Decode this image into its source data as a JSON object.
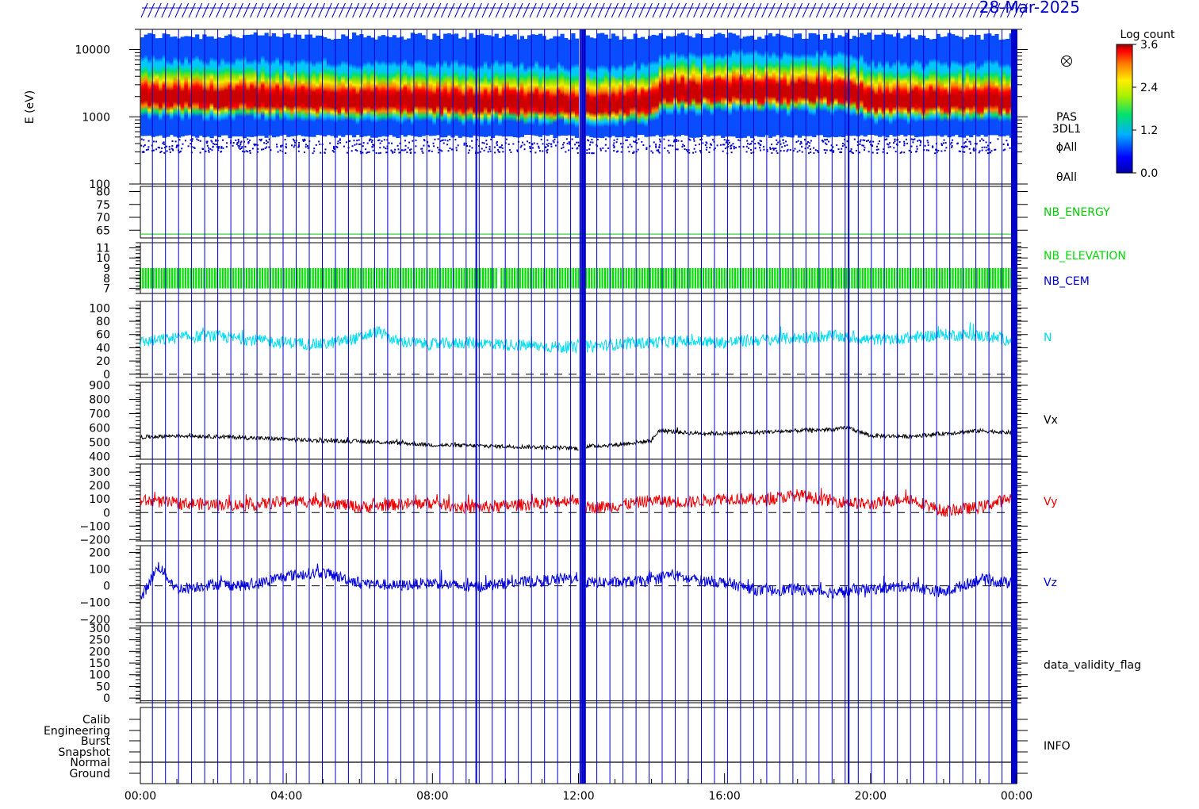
{
  "figure": {
    "date_label": "28-Mar-2025",
    "x_tick_labels": [
      "00:00",
      "04:00",
      "08:00",
      "12:00",
      "16:00",
      "20:00",
      "00:00"
    ],
    "marker_color": "#0000cc"
  },
  "colorbar": {
    "title": "Log count",
    "tick_labels": [
      "3.6",
      "2.4",
      "1.2",
      "0.0"
    ],
    "range": [
      0.0,
      3.6
    ]
  },
  "chart_data": [
    {
      "type": "heatmap",
      "ylabel": "E (eV)",
      "yscale": "log",
      "ylim": [
        100,
        20000
      ],
      "y_tick_labels": [
        "10000",
        "1000",
        "100"
      ],
      "right_labels": [
        "PAS",
        "3DL1",
        "ϕAll",
        "θAll"
      ],
      "x_unit": "hours",
      "peak_energy_eV": {
        "x": [
          0,
          2,
          4,
          6,
          8,
          10,
          12,
          13,
          14,
          14.3,
          16,
          18,
          19.4,
          20,
          22,
          24
        ],
        "values": [
          1700,
          1650,
          1600,
          1500,
          1450,
          1400,
          1350,
          1350,
          1400,
          2000,
          2100,
          2050,
          2000,
          1500,
          1500,
          1500
        ]
      },
      "data_gap_hours": [
        12.0,
        12.2
      ]
    },
    {
      "type": "line",
      "name": "NB_ENERGY",
      "color": "#00cc00",
      "ylim": [
        62,
        82
      ],
      "y_tick_labels": [
        "80",
        "75",
        "70",
        "65"
      ],
      "x": [
        0,
        24
      ],
      "values": [
        63.5,
        63.5
      ]
    },
    {
      "type": "bar",
      "names": [
        "NB_ELEVATION",
        "NB_CEM"
      ],
      "colors": [
        "#00dd00",
        "#0000cc"
      ],
      "ylim": [
        6.5,
        11.5
      ],
      "y_tick_labels": [
        "11",
        "10",
        "9",
        "8",
        "7"
      ],
      "band": [
        7,
        9
      ]
    },
    {
      "type": "line",
      "name": "N",
      "color": "#00ddee",
      "ylim": [
        -5,
        110
      ],
      "y_tick_labels": [
        "100",
        "80",
        "60",
        "40",
        "20",
        "0"
      ],
      "x": [
        0,
        1,
        2,
        3,
        4,
        5,
        6,
        6.5,
        7,
        8,
        9,
        10,
        11,
        12,
        13,
        14,
        15,
        16,
        17,
        18,
        19,
        20,
        21,
        22,
        23,
        24
      ],
      "values": [
        48,
        55,
        58,
        52,
        48,
        45,
        55,
        65,
        50,
        45,
        48,
        45,
        42,
        40,
        45,
        48,
        50,
        48,
        52,
        55,
        58,
        52,
        55,
        60,
        58,
        50
      ]
    },
    {
      "type": "line",
      "name": "Vx",
      "color": "#000000",
      "ylim": [
        380,
        920
      ],
      "y_tick_labels": [
        "900",
        "800",
        "700",
        "600",
        "500",
        "400"
      ],
      "x": [
        0,
        1,
        2,
        3,
        4,
        5,
        6,
        7,
        8,
        9,
        10,
        11,
        12,
        12.2,
        13,
        14,
        14.2,
        15,
        16,
        17,
        18,
        19,
        19.4,
        20,
        21,
        22,
        23,
        24
      ],
      "values": [
        535,
        545,
        540,
        530,
        520,
        510,
        505,
        495,
        480,
        475,
        470,
        465,
        455,
        470,
        480,
        510,
        580,
        565,
        560,
        570,
        580,
        590,
        600,
        545,
        540,
        560,
        580,
        565
      ]
    },
    {
      "type": "line",
      "name": "Vy",
      "color": "#ee0000",
      "ylim": [
        -210,
        360
      ],
      "y_tick_labels": [
        "300",
        "200",
        "100",
        "0",
        "−100",
        "−200"
      ],
      "x": [
        0,
        1,
        2,
        3,
        4,
        5,
        6,
        7,
        8,
        9,
        10,
        11,
        12,
        12.2,
        13,
        14,
        15,
        16,
        17,
        18,
        19,
        20,
        21,
        22,
        23,
        24
      ],
      "values": [
        90,
        70,
        60,
        55,
        80,
        85,
        40,
        60,
        70,
        35,
        50,
        70,
        100,
        35,
        50,
        90,
        75,
        110,
        90,
        130,
        85,
        60,
        110,
        10,
        40,
        120
      ]
    },
    {
      "type": "line",
      "name": "Vz",
      "color": "#0000dd",
      "ylim": [
        -220,
        240
      ],
      "y_tick_labels": [
        "200",
        "100",
        "0",
        "−100",
        "−200"
      ],
      "x": [
        0,
        0.5,
        1,
        2,
        3,
        4,
        5,
        6,
        7,
        8,
        9,
        10,
        11,
        12,
        12.2,
        13,
        14,
        14.5,
        15,
        16,
        17,
        18,
        19,
        20,
        21,
        22,
        23,
        24
      ],
      "values": [
        -80,
        120,
        -20,
        10,
        0,
        60,
        80,
        20,
        0,
        20,
        -10,
        15,
        30,
        50,
        20,
        20,
        30,
        70,
        40,
        20,
        -30,
        -20,
        -40,
        -20,
        0,
        -40,
        40,
        10
      ]
    },
    {
      "type": "line",
      "name": "data_validity_flag",
      "color": "#000000",
      "ylim": [
        -20,
        310
      ],
      "y_tick_labels": [
        "300",
        "250",
        "200",
        "150",
        "100",
        "50",
        "0"
      ],
      "x": [
        0,
        24
      ],
      "values": [
        -12,
        -12
      ]
    },
    {
      "type": "table",
      "name": "INFO",
      "categories": [
        "Calib",
        "Engineering",
        "Burst",
        "Snapshot",
        "Normal",
        "Ground"
      ],
      "active_category": "Normal"
    }
  ]
}
